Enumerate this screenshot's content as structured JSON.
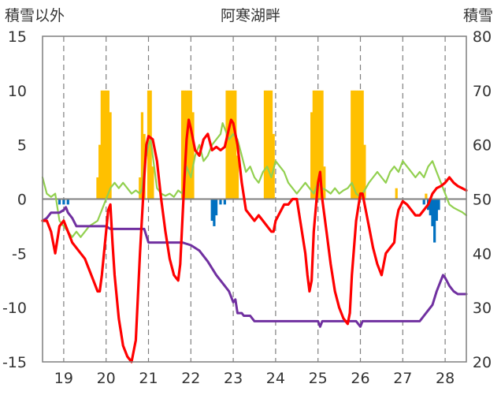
{
  "chart_data": {
    "type": "line",
    "title": "阿寒湖畔",
    "left_axis_label": "積雪以外",
    "right_axis_label": "積雪",
    "left_ylim": [
      -15,
      15
    ],
    "left_yticks": [
      "15",
      "10",
      "5",
      "0",
      "-5",
      "-10",
      "-15"
    ],
    "right_ylim": [
      20,
      80
    ],
    "right_yticks": [
      "80",
      "70",
      "60",
      "50",
      "40",
      "30",
      "20"
    ],
    "x_range": [
      18.5,
      28.5
    ],
    "x_ticks": [
      "19",
      "20",
      "21",
      "22",
      "23",
      "24",
      "25",
      "26",
      "27",
      "28"
    ],
    "gridlines": "vertical dashed at each day",
    "colors": {
      "temperature": "#ff0000",
      "green_series": "#92d050",
      "snow_depth": "#7030a0",
      "precip_positive": "#ffc000",
      "precip_negative": "#0070c0",
      "zero_line": "#808080",
      "grid": "#7f7f7f"
    },
    "bars_positive": [
      [
        19.8,
        2.0
      ],
      [
        19.85,
        5.0
      ],
      [
        19.9,
        10.0
      ],
      [
        19.95,
        10.0
      ],
      [
        20.0,
        10.0
      ],
      [
        20.05,
        10.0
      ],
      [
        20.1,
        8.0
      ],
      [
        20.8,
        2.0
      ],
      [
        20.85,
        8.0
      ],
      [
        20.9,
        6.0
      ],
      [
        21.0,
        10.0
      ],
      [
        21.05,
        10.0
      ],
      [
        21.1,
        3.0
      ],
      [
        21.8,
        10.0
      ],
      [
        21.85,
        10.0
      ],
      [
        21.9,
        10.0
      ],
      [
        21.95,
        10.0
      ],
      [
        22.0,
        10.0
      ],
      [
        22.05,
        8.0
      ],
      [
        22.85,
        10.0
      ],
      [
        22.9,
        10.0
      ],
      [
        22.95,
        10.0
      ],
      [
        23.0,
        10.0
      ],
      [
        23.05,
        10.0
      ],
      [
        23.1,
        4.0
      ],
      [
        23.75,
        10.0
      ],
      [
        23.8,
        10.0
      ],
      [
        23.85,
        10.0
      ],
      [
        23.9,
        10.0
      ],
      [
        23.95,
        6.0
      ],
      [
        24.85,
        8.0
      ],
      [
        24.9,
        10.0
      ],
      [
        24.95,
        10.0
      ],
      [
        25.0,
        10.0
      ],
      [
        25.05,
        10.0
      ],
      [
        25.1,
        10.0
      ],
      [
        25.15,
        3.0
      ],
      [
        25.8,
        10.0
      ],
      [
        25.85,
        10.0
      ],
      [
        25.9,
        10.0
      ],
      [
        25.95,
        10.0
      ],
      [
        26.0,
        10.0
      ],
      [
        26.05,
        10.0
      ],
      [
        26.1,
        5.0
      ],
      [
        26.85,
        1.0
      ],
      [
        27.55,
        0.5
      ]
    ],
    "bars_negative": [
      [
        18.9,
        -0.5
      ],
      [
        19.0,
        -0.5
      ],
      [
        19.1,
        -0.5
      ],
      [
        22.5,
        -2.0
      ],
      [
        22.55,
        -2.5
      ],
      [
        22.6,
        -1.5
      ],
      [
        22.7,
        -0.5
      ],
      [
        22.8,
        -0.5
      ],
      [
        27.5,
        -0.5
      ],
      [
        27.6,
        -1.0
      ],
      [
        27.65,
        -1.5
      ],
      [
        27.7,
        -2.5
      ],
      [
        27.75,
        -4.0
      ],
      [
        27.8,
        -2.0
      ],
      [
        27.85,
        -1.0
      ]
    ],
    "series": [
      {
        "name": "temperature",
        "axis": "left",
        "points": [
          [
            18.5,
            -2.0
          ],
          [
            18.6,
            -2.0
          ],
          [
            18.7,
            -3.0
          ],
          [
            18.8,
            -5.0
          ],
          [
            18.9,
            -2.5
          ],
          [
            19.0,
            -2.0
          ],
          [
            19.2,
            -4.0
          ],
          [
            19.4,
            -5.0
          ],
          [
            19.5,
            -5.5
          ],
          [
            19.6,
            -6.5
          ],
          [
            19.7,
            -7.5
          ],
          [
            19.8,
            -8.5
          ],
          [
            19.85,
            -8.5
          ],
          [
            19.9,
            -7.0
          ],
          [
            19.95,
            -5.0
          ],
          [
            20.0,
            -3.0
          ],
          [
            20.05,
            -1.0
          ],
          [
            20.1,
            -0.5
          ],
          [
            20.15,
            -4.0
          ],
          [
            20.2,
            -7.0
          ],
          [
            20.3,
            -11.0
          ],
          [
            20.4,
            -13.5
          ],
          [
            20.5,
            -14.5
          ],
          [
            20.6,
            -15.0
          ],
          [
            20.7,
            -13.0
          ],
          [
            20.8,
            -5.0
          ],
          [
            20.9,
            2.0
          ],
          [
            20.95,
            5.0
          ],
          [
            21.0,
            5.8
          ],
          [
            21.1,
            5.5
          ],
          [
            21.2,
            3.5
          ],
          [
            21.3,
            0.0
          ],
          [
            21.4,
            -3.0
          ],
          [
            21.5,
            -5.5
          ],
          [
            21.6,
            -7.0
          ],
          [
            21.7,
            -7.5
          ],
          [
            21.75,
            -6.0
          ],
          [
            21.85,
            2.0
          ],
          [
            21.9,
            5.5
          ],
          [
            21.95,
            7.3
          ],
          [
            22.0,
            6.5
          ],
          [
            22.1,
            4.5
          ],
          [
            22.2,
            4.0
          ],
          [
            22.3,
            5.5
          ],
          [
            22.4,
            6.0
          ],
          [
            22.5,
            4.5
          ],
          [
            22.6,
            4.8
          ],
          [
            22.7,
            4.5
          ],
          [
            22.8,
            4.8
          ],
          [
            22.9,
            6.5
          ],
          [
            22.95,
            7.3
          ],
          [
            23.0,
            7.0
          ],
          [
            23.1,
            5.0
          ],
          [
            23.2,
            1.5
          ],
          [
            23.3,
            -1.0
          ],
          [
            23.4,
            -1.5
          ],
          [
            23.5,
            -2.0
          ],
          [
            23.6,
            -1.5
          ],
          [
            23.7,
            -2.0
          ],
          [
            23.8,
            -2.5
          ],
          [
            23.9,
            -3.0
          ],
          [
            23.95,
            -3.0
          ],
          [
            24.0,
            -2.0
          ],
          [
            24.2,
            -0.5
          ],
          [
            24.3,
            -0.5
          ],
          [
            24.4,
            0.0
          ],
          [
            24.5,
            0.0
          ],
          [
            24.6,
            -2.5
          ],
          [
            24.7,
            -5.0
          ],
          [
            24.75,
            -7.0
          ],
          [
            24.8,
            -8.5
          ],
          [
            24.85,
            -7.5
          ],
          [
            24.9,
            -3.0
          ],
          [
            25.0,
            1.5
          ],
          [
            25.05,
            2.5
          ],
          [
            25.1,
            0.0
          ],
          [
            25.2,
            -3.0
          ],
          [
            25.3,
            -6.0
          ],
          [
            25.4,
            -8.5
          ],
          [
            25.5,
            -10.0
          ],
          [
            25.6,
            -11.0
          ],
          [
            25.7,
            -11.5
          ],
          [
            25.75,
            -10.5
          ],
          [
            25.8,
            -7.0
          ],
          [
            25.9,
            -2.0
          ],
          [
            26.0,
            0.5
          ],
          [
            26.05,
            0.5
          ],
          [
            26.1,
            -0.5
          ],
          [
            26.2,
            -2.5
          ],
          [
            26.3,
            -4.5
          ],
          [
            26.4,
            -6.0
          ],
          [
            26.5,
            -7.0
          ],
          [
            26.55,
            -6.0
          ],
          [
            26.6,
            -5.0
          ],
          [
            26.7,
            -4.5
          ],
          [
            26.8,
            -4.0
          ],
          [
            26.85,
            -2.0
          ],
          [
            26.9,
            -1.0
          ],
          [
            27.0,
            -0.2
          ],
          [
            27.1,
            -0.5
          ],
          [
            27.2,
            -1.0
          ],
          [
            27.3,
            -1.5
          ],
          [
            27.4,
            -1.5
          ],
          [
            27.5,
            -1.0
          ],
          [
            27.6,
            -0.5
          ],
          [
            27.7,
            0.5
          ],
          [
            27.8,
            1.0
          ],
          [
            27.9,
            1.2
          ],
          [
            28.0,
            1.5
          ],
          [
            28.1,
            2.0
          ],
          [
            28.2,
            1.5
          ],
          [
            28.3,
            1.2
          ],
          [
            28.4,
            1.0
          ],
          [
            28.5,
            0.8
          ]
        ]
      },
      {
        "name": "green_series",
        "axis": "left",
        "points": [
          [
            18.5,
            2.0
          ],
          [
            18.6,
            0.5
          ],
          [
            18.7,
            0.2
          ],
          [
            18.8,
            0.5
          ],
          [
            18.9,
            -2.0
          ],
          [
            19.0,
            -2.5
          ],
          [
            19.1,
            -3.0
          ],
          [
            19.2,
            -3.5
          ],
          [
            19.3,
            -3.0
          ],
          [
            19.4,
            -3.5
          ],
          [
            19.5,
            -3.0
          ],
          [
            19.6,
            -2.5
          ],
          [
            19.8,
            -2.0
          ],
          [
            19.9,
            -1.0
          ],
          [
            20.0,
            0.0
          ],
          [
            20.05,
            0.5
          ],
          [
            20.1,
            1.0
          ],
          [
            20.2,
            1.5
          ],
          [
            20.3,
            1.0
          ],
          [
            20.4,
            1.5
          ],
          [
            20.5,
            1.0
          ],
          [
            20.6,
            0.5
          ],
          [
            20.7,
            0.8
          ],
          [
            20.8,
            0.5
          ],
          [
            20.85,
            1.0
          ],
          [
            20.9,
            3.0
          ],
          [
            21.0,
            5.0
          ],
          [
            21.05,
            5.5
          ],
          [
            21.1,
            4.0
          ],
          [
            21.2,
            1.0
          ],
          [
            21.3,
            0.5
          ],
          [
            21.4,
            0.3
          ],
          [
            21.5,
            0.5
          ],
          [
            21.6,
            0.2
          ],
          [
            21.7,
            0.8
          ],
          [
            21.8,
            0.5
          ],
          [
            21.85,
            1.5
          ],
          [
            21.9,
            3.0
          ],
          [
            22.0,
            2.0
          ],
          [
            22.1,
            4.0
          ],
          [
            22.2,
            5.0
          ],
          [
            22.3,
            3.5
          ],
          [
            22.4,
            4.0
          ],
          [
            22.5,
            5.0
          ],
          [
            22.6,
            5.5
          ],
          [
            22.7,
            6.0
          ],
          [
            22.75,
            7.0
          ],
          [
            22.8,
            6.5
          ],
          [
            22.9,
            5.5
          ],
          [
            23.0,
            6.0
          ],
          [
            23.1,
            5.5
          ],
          [
            23.2,
            4.0
          ],
          [
            23.3,
            2.5
          ],
          [
            23.4,
            3.0
          ],
          [
            23.5,
            2.0
          ],
          [
            23.6,
            1.5
          ],
          [
            23.7,
            2.5
          ],
          [
            23.8,
            3.0
          ],
          [
            23.9,
            2.0
          ],
          [
            24.0,
            3.5
          ],
          [
            24.1,
            3.0
          ],
          [
            24.2,
            2.5
          ],
          [
            24.3,
            1.5
          ],
          [
            24.4,
            1.0
          ],
          [
            24.5,
            0.5
          ],
          [
            24.6,
            1.0
          ],
          [
            24.7,
            1.5
          ],
          [
            24.8,
            1.0
          ],
          [
            24.9,
            0.5
          ],
          [
            25.0,
            1.5
          ],
          [
            25.1,
            1.0
          ],
          [
            25.2,
            0.8
          ],
          [
            25.3,
            0.5
          ],
          [
            25.4,
            1.0
          ],
          [
            25.5,
            0.5
          ],
          [
            25.6,
            0.8
          ],
          [
            25.7,
            1.0
          ],
          [
            25.8,
            1.5
          ],
          [
            25.9,
            0.5
          ],
          [
            26.0,
            0.2
          ],
          [
            26.1,
            0.8
          ],
          [
            26.2,
            1.5
          ],
          [
            26.3,
            2.0
          ],
          [
            26.4,
            2.5
          ],
          [
            26.5,
            2.0
          ],
          [
            26.6,
            1.5
          ],
          [
            26.7,
            2.5
          ],
          [
            26.8,
            3.0
          ],
          [
            26.9,
            2.5
          ],
          [
            27.0,
            3.5
          ],
          [
            27.1,
            3.0
          ],
          [
            27.2,
            2.5
          ],
          [
            27.3,
            2.0
          ],
          [
            27.4,
            2.5
          ],
          [
            27.5,
            2.0
          ],
          [
            27.6,
            3.0
          ],
          [
            27.7,
            3.5
          ],
          [
            27.8,
            2.5
          ],
          [
            27.9,
            1.5
          ],
          [
            28.0,
            0.5
          ],
          [
            28.1,
            -0.5
          ],
          [
            28.2,
            -0.8
          ],
          [
            28.3,
            -1.0
          ],
          [
            28.4,
            -1.2
          ],
          [
            28.5,
            -1.5
          ]
        ]
      },
      {
        "name": "snow_depth",
        "axis": "right",
        "points": [
          [
            18.5,
            46.0
          ],
          [
            18.6,
            46.5
          ],
          [
            18.7,
            47.5
          ],
          [
            18.9,
            47.5
          ],
          [
            19.0,
            48.0
          ],
          [
            19.05,
            48.5
          ],
          [
            19.1,
            47.5
          ],
          [
            19.2,
            46.5
          ],
          [
            19.3,
            45.0
          ],
          [
            20.0,
            45.0
          ],
          [
            20.1,
            44.5
          ],
          [
            20.9,
            44.5
          ],
          [
            21.0,
            42.0
          ],
          [
            21.8,
            42.0
          ],
          [
            22.0,
            41.5
          ],
          [
            22.2,
            40.5
          ],
          [
            22.4,
            38.5
          ],
          [
            22.6,
            36.0
          ],
          [
            22.8,
            34.0
          ],
          [
            22.9,
            33.0
          ],
          [
            23.0,
            31.0
          ],
          [
            23.05,
            31.5
          ],
          [
            23.1,
            29.0
          ],
          [
            23.2,
            29.0
          ],
          [
            23.25,
            28.5
          ],
          [
            23.4,
            28.5
          ],
          [
            23.5,
            27.5
          ],
          [
            25.0,
            27.5
          ],
          [
            25.05,
            26.5
          ],
          [
            25.1,
            27.5
          ],
          [
            25.9,
            27.5
          ],
          [
            26.0,
            26.5
          ],
          [
            26.05,
            27.5
          ],
          [
            27.4,
            27.5
          ],
          [
            27.5,
            28.5
          ],
          [
            27.6,
            29.5
          ],
          [
            27.7,
            30.5
          ],
          [
            27.8,
            33.0
          ],
          [
            27.9,
            35.0
          ],
          [
            27.95,
            36.0
          ],
          [
            28.0,
            35.5
          ],
          [
            28.1,
            34.0
          ],
          [
            28.2,
            33.0
          ],
          [
            28.3,
            32.5
          ],
          [
            28.4,
            32.5
          ],
          [
            28.5,
            32.5
          ]
        ]
      }
    ]
  }
}
